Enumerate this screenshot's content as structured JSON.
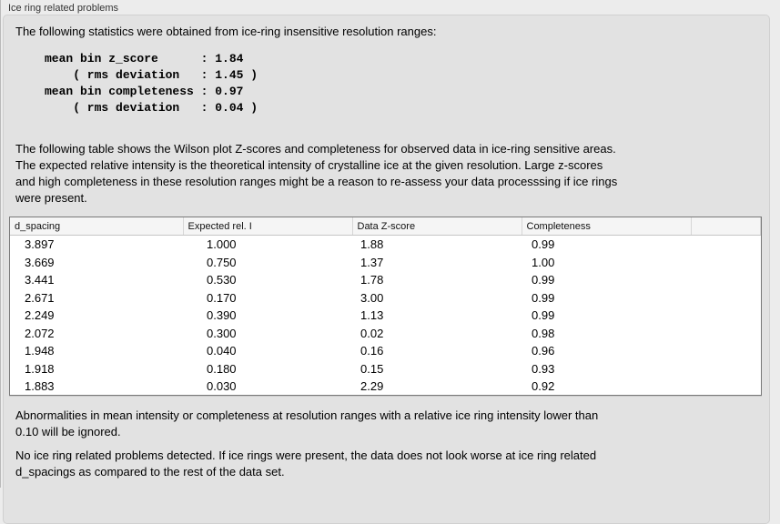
{
  "panel": {
    "title": "Ice ring related problems"
  },
  "stats": {
    "intro": "The following statistics were obtained from ice-ring insensitive resolution ranges:",
    "values_block": "mean bin z_score      : 1.84\n    ( rms deviation   : 1.45 )\nmean bin completeness : 0.97\n    ( rms deviation   : 0.04 )",
    "mean_bin_z_score": "1.84",
    "z_score_rms_deviation": "1.45",
    "mean_bin_completeness": "0.97",
    "completeness_rms_deviation": "0.04"
  },
  "table_description": "The following table shows the Wilson plot Z-scores and completeness for observed data in ice-ring sensitive areas.\nThe expected relative intensity is the theoretical intensity of crystalline ice at the given resolution. Large z-scores\nand high completeness in these resolution ranges might be a reason to re-assess your data processsing if ice rings\nwere present.",
  "table": {
    "headers": [
      "d_spacing",
      "Expected rel. I",
      "Data Z-score",
      "Completeness"
    ],
    "rows": [
      [
        "3.897",
        "1.000",
        "1.88",
        "0.99"
      ],
      [
        "3.669",
        "0.750",
        "1.37",
        "1.00"
      ],
      [
        "3.441",
        "0.530",
        "1.78",
        "0.99"
      ],
      [
        "2.671",
        "0.170",
        "3.00",
        "0.99"
      ],
      [
        "2.249",
        "0.390",
        "1.13",
        "0.99"
      ],
      [
        "2.072",
        "0.300",
        "0.02",
        "0.98"
      ],
      [
        "1.948",
        "0.040",
        "0.16",
        "0.96"
      ],
      [
        "1.918",
        "0.180",
        "0.15",
        "0.93"
      ],
      [
        "1.883",
        "0.030",
        "2.29",
        "0.92"
      ]
    ]
  },
  "notes": {
    "ignore_rule": "Abnormalities in mean intensity or completeness at resolution ranges with a relative ice ring intensity lower than\n0.10 will be ignored.",
    "conclusion": "No ice ring related problems detected. If ice rings were present, the data does not look worse at ice ring related\nd_spacings as compared to the rest of the data set."
  },
  "colors": {
    "window_bg": "#ececec",
    "groupbox_bg": "#e2e2e2",
    "groupbox_border": "#d0d0d0",
    "table_bg": "#ffffff",
    "table_border": "#787878",
    "table_header_bg": "#f5f5f5",
    "text": "#000000"
  }
}
